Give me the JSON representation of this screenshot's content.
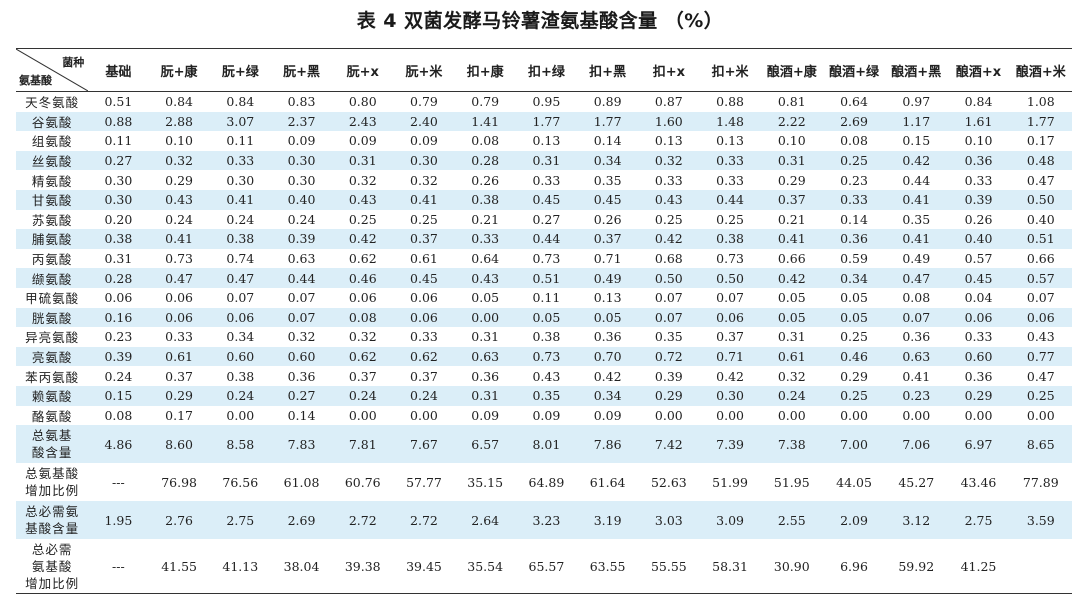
{
  "title": "表 4 双菌发酵马铃薯渣氨基酸含量 （%）",
  "header": {
    "corner_top": "菌种",
    "corner_bottom": "氨基酸",
    "columns": [
      "基础",
      "朊+康",
      "朊+绿",
      "朊+黑",
      "朊+x",
      "朊+米",
      "扣+康",
      "扣+绿",
      "扣+黑",
      "扣+x",
      "扣+米",
      "酿酒+康",
      "酿酒+绿",
      "酿酒+黑",
      "酿酒+x",
      "酿酒+米"
    ]
  },
  "rows": [
    {
      "label_lines": [
        "天冬氨酸"
      ],
      "values": [
        "0.51",
        "0.84",
        "0.84",
        "0.83",
        "0.80",
        "0.79",
        "0.79",
        "0.95",
        "0.89",
        "0.87",
        "0.88",
        "0.81",
        "0.64",
        "0.97",
        "0.84",
        "1.08"
      ]
    },
    {
      "label_lines": [
        "谷氨酸"
      ],
      "values": [
        "0.88",
        "2.88",
        "3.07",
        "2.37",
        "2.43",
        "2.40",
        "1.41",
        "1.77",
        "1.77",
        "1.60",
        "1.48",
        "2.22",
        "2.69",
        "1.17",
        "1.61",
        "1.77"
      ]
    },
    {
      "label_lines": [
        "组氨酸"
      ],
      "values": [
        "0.11",
        "0.10",
        "0.11",
        "0.09",
        "0.09",
        "0.09",
        "0.08",
        "0.13",
        "0.14",
        "0.13",
        "0.13",
        "0.10",
        "0.08",
        "0.15",
        "0.10",
        "0.17"
      ]
    },
    {
      "label_lines": [
        "丝氨酸"
      ],
      "values": [
        "0.27",
        "0.32",
        "0.33",
        "0.30",
        "0.31",
        "0.30",
        "0.28",
        "0.31",
        "0.34",
        "0.32",
        "0.33",
        "0.31",
        "0.25",
        "0.42",
        "0.36",
        "0.48"
      ]
    },
    {
      "label_lines": [
        "精氨酸"
      ],
      "values": [
        "0.30",
        "0.29",
        "0.30",
        "0.30",
        "0.32",
        "0.32",
        "0.26",
        "0.33",
        "0.35",
        "0.33",
        "0.33",
        "0.29",
        "0.23",
        "0.44",
        "0.33",
        "0.47"
      ]
    },
    {
      "label_lines": [
        "甘氨酸"
      ],
      "values": [
        "0.30",
        "0.43",
        "0.41",
        "0.40",
        "0.43",
        "0.41",
        "0.38",
        "0.45",
        "0.45",
        "0.43",
        "0.44",
        "0.37",
        "0.33",
        "0.41",
        "0.39",
        "0.50"
      ]
    },
    {
      "label_lines": [
        "苏氨酸"
      ],
      "values": [
        "0.20",
        "0.24",
        "0.24",
        "0.24",
        "0.25",
        "0.25",
        "0.21",
        "0.27",
        "0.26",
        "0.25",
        "0.25",
        "0.21",
        "0.14",
        "0.35",
        "0.26",
        "0.40"
      ]
    },
    {
      "label_lines": [
        "脯氨酸"
      ],
      "values": [
        "0.38",
        "0.41",
        "0.38",
        "0.39",
        "0.42",
        "0.37",
        "0.33",
        "0.44",
        "0.37",
        "0.42",
        "0.38",
        "0.41",
        "0.36",
        "0.41",
        "0.40",
        "0.51"
      ]
    },
    {
      "label_lines": [
        "丙氨酸"
      ],
      "values": [
        "0.31",
        "0.73",
        "0.74",
        "0.63",
        "0.62",
        "0.61",
        "0.64",
        "0.73",
        "0.71",
        "0.68",
        "0.73",
        "0.66",
        "0.59",
        "0.49",
        "0.57",
        "0.66"
      ]
    },
    {
      "label_lines": [
        "缬氨酸"
      ],
      "values": [
        "0.28",
        "0.47",
        "0.47",
        "0.44",
        "0.46",
        "0.45",
        "0.43",
        "0.51",
        "0.49",
        "0.50",
        "0.50",
        "0.42",
        "0.34",
        "0.47",
        "0.45",
        "0.57"
      ]
    },
    {
      "label_lines": [
        "甲硫氨酸"
      ],
      "values": [
        "0.06",
        "0.06",
        "0.07",
        "0.07",
        "0.06",
        "0.06",
        "0.05",
        "0.11",
        "0.13",
        "0.07",
        "0.07",
        "0.05",
        "0.05",
        "0.08",
        "0.04",
        "0.07"
      ]
    },
    {
      "label_lines": [
        "胱氨酸"
      ],
      "values": [
        "0.16",
        "0.06",
        "0.06",
        "0.07",
        "0.08",
        "0.06",
        "0.00",
        "0.05",
        "0.05",
        "0.07",
        "0.06",
        "0.05",
        "0.05",
        "0.07",
        "0.06",
        "0.06"
      ]
    },
    {
      "label_lines": [
        "异亮氨酸"
      ],
      "values": [
        "0.23",
        "0.33",
        "0.34",
        "0.32",
        "0.32",
        "0.33",
        "0.31",
        "0.38",
        "0.36",
        "0.35",
        "0.37",
        "0.31",
        "0.25",
        "0.36",
        "0.33",
        "0.43"
      ]
    },
    {
      "label_lines": [
        "亮氨酸"
      ],
      "values": [
        "0.39",
        "0.61",
        "0.60",
        "0.60",
        "0.62",
        "0.62",
        "0.63",
        "0.73",
        "0.70",
        "0.72",
        "0.71",
        "0.61",
        "0.46",
        "0.63",
        "0.60",
        "0.77"
      ]
    },
    {
      "label_lines": [
        "苯丙氨酸"
      ],
      "values": [
        "0.24",
        "0.37",
        "0.38",
        "0.36",
        "0.37",
        "0.37",
        "0.36",
        "0.43",
        "0.42",
        "0.39",
        "0.42",
        "0.32",
        "0.29",
        "0.41",
        "0.36",
        "0.47"
      ]
    },
    {
      "label_lines": [
        "赖氨酸"
      ],
      "values": [
        "0.15",
        "0.29",
        "0.24",
        "0.27",
        "0.24",
        "0.24",
        "0.31",
        "0.35",
        "0.34",
        "0.29",
        "0.30",
        "0.24",
        "0.25",
        "0.23",
        "0.29",
        "0.25"
      ]
    },
    {
      "label_lines": [
        "酪氨酸"
      ],
      "values": [
        "0.08",
        "0.17",
        "0.00",
        "0.14",
        "0.00",
        "0.00",
        "0.09",
        "0.09",
        "0.09",
        "0.00",
        "0.00",
        "0.00",
        "0.00",
        "0.00",
        "0.00",
        "0.00"
      ]
    },
    {
      "label_lines": [
        "总氨基",
        "酸含量"
      ],
      "values": [
        "4.86",
        "8.60",
        "8.58",
        "7.83",
        "7.81",
        "7.67",
        "6.57",
        "8.01",
        "7.86",
        "7.42",
        "7.39",
        "7.38",
        "7.00",
        "7.06",
        "6.97",
        "8.65"
      ]
    },
    {
      "label_lines": [
        "总氨基酸",
        "增加比例"
      ],
      "values": [
        "---",
        "76.98",
        "76.56",
        "61.08",
        "60.76",
        "57.77",
        "35.15",
        "64.89",
        "61.64",
        "52.63",
        "51.99",
        "51.95",
        "44.05",
        "45.27",
        "43.46",
        "77.89"
      ]
    },
    {
      "label_lines": [
        "总必需氨",
        "基酸含量"
      ],
      "values": [
        "1.95",
        "2.76",
        "2.75",
        "2.69",
        "2.72",
        "2.72",
        "2.64",
        "3.23",
        "3.19",
        "3.03",
        "3.09",
        "2.55",
        "2.09",
        "3.12",
        "2.75",
        "3.59"
      ]
    },
    {
      "label_lines": [
        "总必需",
        "氨基酸",
        "增加比例"
      ],
      "values": [
        "---",
        "41.55",
        "41.13",
        "38.04",
        "39.38",
        "39.45",
        "35.54",
        "65.57",
        "63.55",
        "55.55",
        "58.31",
        "30.90",
        "6.96",
        "59.92",
        "41.25",
        ""
      ]
    }
  ]
}
